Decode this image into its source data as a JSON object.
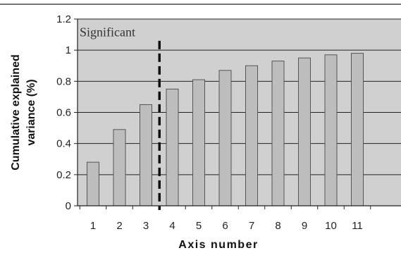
{
  "chart_data": {
    "type": "bar",
    "categories": [
      "1",
      "2",
      "3",
      "4",
      "5",
      "6",
      "7",
      "8",
      "9",
      "10",
      "11"
    ],
    "values": [
      0.28,
      0.49,
      0.65,
      0.75,
      0.81,
      0.87,
      0.9,
      0.93,
      0.95,
      0.97,
      0.98
    ],
    "xlabel": "Axis number",
    "ylabel": "Cumulative explained variance (%)",
    "ylabel_lines": [
      "Cumulative explained",
      "variance (%)"
    ],
    "ylim": [
      0,
      1.2
    ],
    "yticks": [
      "0",
      "0.2",
      "0.4",
      "0.6",
      "0.8",
      "1",
      "1.2"
    ],
    "grid": true,
    "significance_threshold_axis": 3.5,
    "annotation": "Significant",
    "colors": {
      "bar": "#bdbdbd",
      "bar_stroke": "#555555",
      "plot_bg": "#d0d0d0",
      "grid": "#222222",
      "threshold": "#111111"
    }
  }
}
